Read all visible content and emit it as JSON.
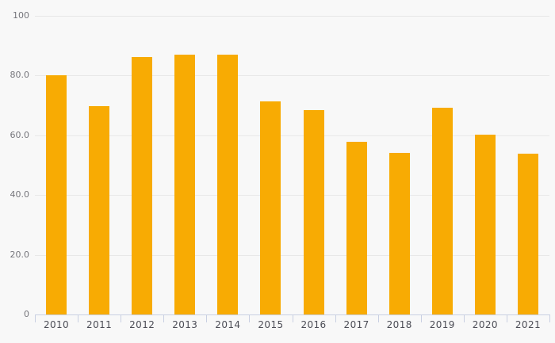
{
  "chart_data": {
    "type": "bar",
    "title": "",
    "xlabel": "",
    "ylabel": "",
    "categories": [
      "2010",
      "2011",
      "2012",
      "2013",
      "2014",
      "2015",
      "2016",
      "2017",
      "2018",
      "2019",
      "2020",
      "2021"
    ],
    "values": [
      80.2,
      69.8,
      86.3,
      86.9,
      86.9,
      71.3,
      68.4,
      57.7,
      54.2,
      69.3,
      60.3,
      53.9
    ],
    "ylim": [
      0,
      100
    ],
    "yticks": [
      {
        "label": "0",
        "value": 0
      },
      {
        "label": "20.0",
        "value": 20
      },
      {
        "label": "40.0",
        "value": 40
      },
      {
        "label": "60.0",
        "value": 60
      },
      {
        "label": "80.0",
        "value": 80
      },
      {
        "label": "100",
        "value": 100
      }
    ],
    "grid": true,
    "legend": false,
    "bar_color": "#F8AB03",
    "background_color": "#F8F8F8",
    "gridline_color": "#E8E8E8",
    "axis_color": "#C9D0E2",
    "ytick_label_color": "#75757B",
    "xtick_label_color": "#4C4D56"
  }
}
